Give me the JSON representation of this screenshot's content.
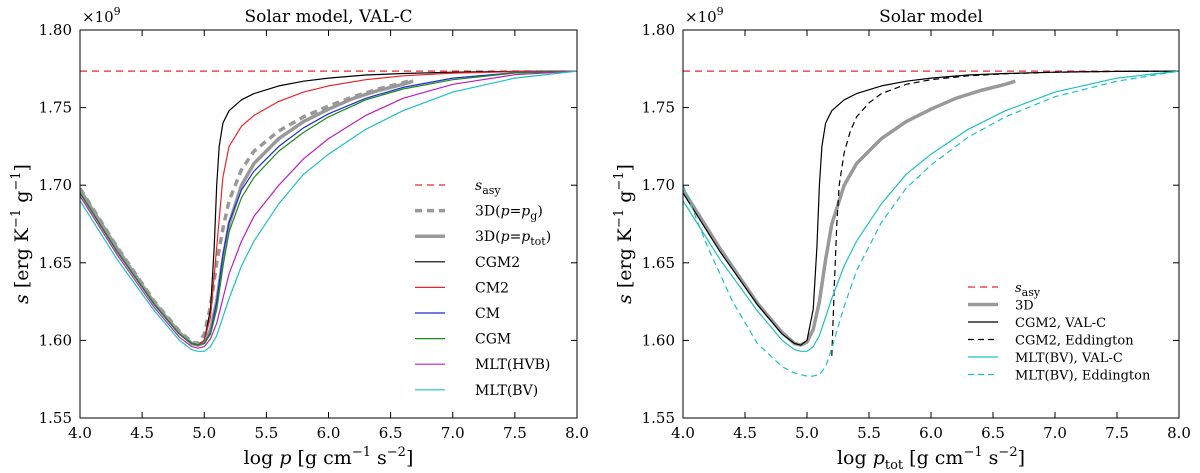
{
  "chart_data": [
    {
      "type": "line",
      "title": "Solar model, VAL-C",
      "xlabel_prefix": "log",
      "xlabel_var": "p",
      "xlabel_sub": "",
      "xlabel_units": "[g cm",
      "xlabel_exp1": "−1",
      "xlabel_mid": " s",
      "xlabel_exp2": "−2",
      "xlabel_end": "]",
      "ylabel_var": "s",
      "ylabel_units": "[erg K",
      "ylabel_exp1": "−1",
      "ylabel_mid": " g",
      "ylabel_exp2": "−1",
      "ylabel_end": "]",
      "y_multiplier": "×10",
      "y_multiplier_exp": "9",
      "xlim": [
        4.0,
        8.0
      ],
      "ylim": [
        1.55,
        1.8
      ],
      "xticks": [
        "4.0",
        "4.5",
        "5.0",
        "5.5",
        "6.0",
        "6.5",
        "7.0",
        "7.5",
        "8.0"
      ],
      "yticks": [
        "1.55",
        "1.60",
        "1.65",
        "1.70",
        "1.75",
        "1.80"
      ],
      "legend_position": "center-right",
      "series": [
        {
          "name": "s_asy",
          "label_main": "s",
          "label_sub": "asy",
          "color": "#e8262b",
          "dash": "7,5",
          "width": 1.3,
          "x": [
            4.0,
            8.0
          ],
          "y": [
            1.7735,
            1.7735
          ]
        },
        {
          "name": "3D(p=p_g)",
          "label_main": "3D(",
          "label_var": "p",
          "label_eq": "=",
          "label_var2": "p",
          "label_sub": "g",
          "label_end": ")",
          "color": "#999999",
          "dash": "7,5",
          "width": 3.5,
          "x": [
            4.0,
            4.3,
            4.6,
            4.8,
            4.9,
            4.95,
            5.0,
            5.05,
            5.1,
            5.15,
            5.2,
            5.3,
            5.4,
            5.6,
            5.8,
            6.0,
            6.2,
            6.4,
            6.6,
            6.68
          ],
          "y": [
            1.698,
            1.66,
            1.625,
            1.606,
            1.599,
            1.598,
            1.604,
            1.622,
            1.65,
            1.672,
            1.69,
            1.71,
            1.722,
            1.735,
            1.744,
            1.751,
            1.757,
            1.762,
            1.766,
            1.768
          ]
        },
        {
          "name": "3D(p=p_tot)",
          "label_main": "3D(",
          "label_var": "p",
          "label_eq": "=",
          "label_var2": "p",
          "label_sub": "tot",
          "label_end": ")",
          "color": "#999999",
          "dash": "",
          "width": 3.5,
          "x": [
            4.0,
            4.3,
            4.6,
            4.8,
            4.9,
            4.95,
            5.0,
            5.05,
            5.1,
            5.15,
            5.2,
            5.3,
            5.4,
            5.6,
            5.8,
            6.0,
            6.2,
            6.4,
            6.6,
            6.68
          ],
          "y": [
            1.697,
            1.659,
            1.624,
            1.605,
            1.598,
            1.597,
            1.599,
            1.607,
            1.625,
            1.652,
            1.675,
            1.7,
            1.714,
            1.73,
            1.741,
            1.749,
            1.756,
            1.761,
            1.765,
            1.767
          ]
        },
        {
          "name": "CGM2",
          "label_main": "CGM2",
          "color": "#000000",
          "dash": "",
          "width": 1.2,
          "x": [
            4.0,
            4.3,
            4.6,
            4.8,
            4.9,
            4.95,
            5.0,
            5.05,
            5.08,
            5.1,
            5.12,
            5.15,
            5.2,
            5.3,
            5.4,
            5.6,
            5.8,
            6.0,
            6.3,
            6.6,
            7.0,
            7.5,
            8.0
          ],
          "y": [
            1.695,
            1.657,
            1.623,
            1.604,
            1.598,
            1.597,
            1.6,
            1.62,
            1.66,
            1.7,
            1.725,
            1.74,
            1.748,
            1.755,
            1.759,
            1.764,
            1.767,
            1.769,
            1.771,
            1.772,
            1.7728,
            1.7733,
            1.7735
          ]
        },
        {
          "name": "CM2",
          "label_main": "CM2",
          "color": "#e8262b",
          "dash": "",
          "width": 1.2,
          "x": [
            4.0,
            4.3,
            4.6,
            4.8,
            4.9,
            4.95,
            5.0,
            5.05,
            5.1,
            5.15,
            5.2,
            5.3,
            5.4,
            5.6,
            5.8,
            6.0,
            6.3,
            6.6,
            7.0,
            7.5,
            8.0
          ],
          "y": [
            1.695,
            1.657,
            1.623,
            1.604,
            1.598,
            1.597,
            1.6,
            1.615,
            1.66,
            1.705,
            1.725,
            1.738,
            1.745,
            1.754,
            1.76,
            1.764,
            1.768,
            1.7705,
            1.7722,
            1.7731,
            1.7735
          ]
        },
        {
          "name": "CM",
          "label_main": "CM",
          "color": "#1f2bd9",
          "dash": "",
          "width": 1.2,
          "x": [
            4.0,
            4.3,
            4.6,
            4.8,
            4.9,
            4.95,
            5.0,
            5.05,
            5.1,
            5.15,
            5.2,
            5.3,
            5.4,
            5.6,
            5.8,
            6.0,
            6.3,
            6.6,
            7.0,
            7.5,
            8.0
          ],
          "y": [
            1.695,
            1.657,
            1.623,
            1.604,
            1.598,
            1.597,
            1.598,
            1.605,
            1.625,
            1.655,
            1.676,
            1.697,
            1.709,
            1.725,
            1.737,
            1.746,
            1.756,
            1.763,
            1.769,
            1.7725,
            1.7735
          ]
        },
        {
          "name": "CGM",
          "label_main": "CGM",
          "color": "#1a8a1a",
          "dash": "",
          "width": 1.2,
          "x": [
            4.0,
            4.3,
            4.6,
            4.8,
            4.9,
            4.95,
            5.0,
            5.05,
            5.1,
            5.15,
            5.2,
            5.3,
            5.4,
            5.6,
            5.8,
            6.0,
            6.3,
            6.6,
            7.0,
            7.5,
            8.0
          ],
          "y": [
            1.695,
            1.657,
            1.623,
            1.604,
            1.598,
            1.597,
            1.598,
            1.604,
            1.62,
            1.648,
            1.67,
            1.692,
            1.705,
            1.722,
            1.734,
            1.744,
            1.755,
            1.762,
            1.768,
            1.7723,
            1.7735
          ]
        },
        {
          "name": "MLT(HVB)",
          "label_main": "MLT(HVB)",
          "color": "#bb20bb",
          "dash": "",
          "width": 1.2,
          "x": [
            4.0,
            4.3,
            4.6,
            4.8,
            4.9,
            4.95,
            5.0,
            5.05,
            5.1,
            5.15,
            5.2,
            5.3,
            5.4,
            5.6,
            5.8,
            6.0,
            6.3,
            6.6,
            7.0,
            7.5,
            8.0
          ],
          "y": [
            1.693,
            1.655,
            1.621,
            1.602,
            1.596,
            1.595,
            1.596,
            1.601,
            1.611,
            1.627,
            1.643,
            1.664,
            1.68,
            1.7,
            1.717,
            1.73,
            1.745,
            1.756,
            1.765,
            1.7712,
            1.7735
          ]
        },
        {
          "name": "MLT(BV)",
          "label_main": "MLT(BV)",
          "color": "#1fc0c0",
          "dash": "",
          "width": 1.2,
          "x": [
            4.0,
            4.3,
            4.6,
            4.8,
            4.9,
            4.95,
            5.0,
            5.05,
            5.1,
            5.15,
            5.2,
            5.3,
            5.4,
            5.6,
            5.8,
            6.0,
            6.3,
            6.6,
            7.0,
            7.5,
            8.0
          ],
          "y": [
            1.69,
            1.652,
            1.619,
            1.6,
            1.594,
            1.593,
            1.593,
            1.596,
            1.603,
            1.615,
            1.627,
            1.648,
            1.664,
            1.688,
            1.707,
            1.72,
            1.736,
            1.748,
            1.76,
            1.769,
            1.7735
          ]
        }
      ]
    },
    {
      "type": "line",
      "title": "Solar model",
      "xlabel_prefix": "log",
      "xlabel_var": "p",
      "xlabel_sub": "tot",
      "xlabel_units": "[g cm",
      "xlabel_exp1": "−1",
      "xlabel_mid": " s",
      "xlabel_exp2": "−2",
      "xlabel_end": "]",
      "ylabel_var": "s",
      "ylabel_units": "[erg K",
      "ylabel_exp1": "−1",
      "ylabel_mid": " g",
      "ylabel_exp2": "−1",
      "ylabel_end": "]",
      "y_multiplier": "×10",
      "y_multiplier_exp": "9",
      "xlim": [
        4.0,
        8.0
      ],
      "ylim": [
        1.55,
        1.8
      ],
      "xticks": [
        "4.0",
        "4.5",
        "5.0",
        "5.5",
        "6.0",
        "6.5",
        "7.0",
        "7.5",
        "8.0"
      ],
      "yticks": [
        "1.55",
        "1.60",
        "1.65",
        "1.70",
        "1.75",
        "1.80"
      ],
      "legend_position": "lower-right",
      "series": [
        {
          "name": "s_asy",
          "label_main": "s",
          "label_sub": "asy",
          "color": "#e8262b",
          "dash": "7,5",
          "width": 1.3,
          "x": [
            4.0,
            8.0
          ],
          "y": [
            1.7735,
            1.7735
          ]
        },
        {
          "name": "3D",
          "label_main": "3D",
          "color": "#999999",
          "dash": "",
          "width": 3.5,
          "x": [
            4.0,
            4.3,
            4.6,
            4.8,
            4.9,
            4.95,
            5.0,
            5.05,
            5.1,
            5.15,
            5.2,
            5.3,
            5.4,
            5.6,
            5.8,
            6.0,
            6.2,
            6.4,
            6.6,
            6.68
          ],
          "y": [
            1.697,
            1.659,
            1.624,
            1.605,
            1.598,
            1.597,
            1.599,
            1.607,
            1.625,
            1.652,
            1.675,
            1.7,
            1.714,
            1.73,
            1.741,
            1.749,
            1.756,
            1.761,
            1.765,
            1.767
          ]
        },
        {
          "name": "CGM2, VAL-C",
          "label_main": "CGM2, VAL-C",
          "color": "#000000",
          "dash": "",
          "width": 1.2,
          "x": [
            4.0,
            4.3,
            4.6,
            4.8,
            4.9,
            4.95,
            5.0,
            5.05,
            5.08,
            5.1,
            5.12,
            5.15,
            5.2,
            5.3,
            5.4,
            5.6,
            5.8,
            6.0,
            6.3,
            6.6,
            7.0,
            7.5,
            8.0
          ],
          "y": [
            1.695,
            1.657,
            1.623,
            1.604,
            1.598,
            1.597,
            1.6,
            1.62,
            1.66,
            1.7,
            1.725,
            1.74,
            1.748,
            1.755,
            1.759,
            1.764,
            1.767,
            1.769,
            1.771,
            1.772,
            1.7728,
            1.7733,
            1.7735
          ]
        },
        {
          "name": "CGM2, Eddington",
          "label_main": "CGM2, Eddington",
          "color": "#000000",
          "dash": "6,4",
          "width": 1.2,
          "x": [
            5.2,
            5.22,
            5.24,
            5.26,
            5.3,
            5.35,
            5.4,
            5.5,
            5.6,
            5.8,
            6.0,
            6.3,
            6.6,
            7.0,
            7.5,
            8.0
          ],
          "y": [
            1.59,
            1.635,
            1.675,
            1.7,
            1.721,
            1.735,
            1.744,
            1.753,
            1.759,
            1.765,
            1.768,
            1.7705,
            1.7718,
            1.7728,
            1.7733,
            1.7735
          ]
        },
        {
          "name": "MLT(BV), VAL-C",
          "label_main": "MLT(BV), VAL-C",
          "color": "#1fc0c0",
          "dash": "",
          "width": 1.2,
          "x": [
            4.0,
            4.3,
            4.6,
            4.8,
            4.9,
            4.95,
            5.0,
            5.05,
            5.1,
            5.15,
            5.2,
            5.3,
            5.4,
            5.6,
            5.8,
            6.0,
            6.3,
            6.6,
            7.0,
            7.5,
            8.0
          ],
          "y": [
            1.69,
            1.652,
            1.619,
            1.6,
            1.594,
            1.593,
            1.593,
            1.596,
            1.603,
            1.615,
            1.627,
            1.648,
            1.664,
            1.688,
            1.707,
            1.72,
            1.736,
            1.748,
            1.76,
            1.769,
            1.7735
          ]
        },
        {
          "name": "MLT(BV), Eddington",
          "label_main": "MLT(BV), Eddington",
          "color": "#1fc0c0",
          "dash": "6,4",
          "width": 1.2,
          "x": [
            4.0,
            4.2,
            4.4,
            4.6,
            4.8,
            4.9,
            5.0,
            5.05,
            5.1,
            5.15,
            5.2,
            5.3,
            5.4,
            5.6,
            5.8,
            6.0,
            6.3,
            6.6,
            7.0,
            7.5,
            8.0
          ],
          "y": [
            1.7,
            1.66,
            1.625,
            1.598,
            1.583,
            1.579,
            1.577,
            1.577,
            1.578,
            1.583,
            1.595,
            1.622,
            1.645,
            1.676,
            1.698,
            1.713,
            1.731,
            1.744,
            1.757,
            1.767,
            1.7735
          ]
        }
      ]
    }
  ]
}
